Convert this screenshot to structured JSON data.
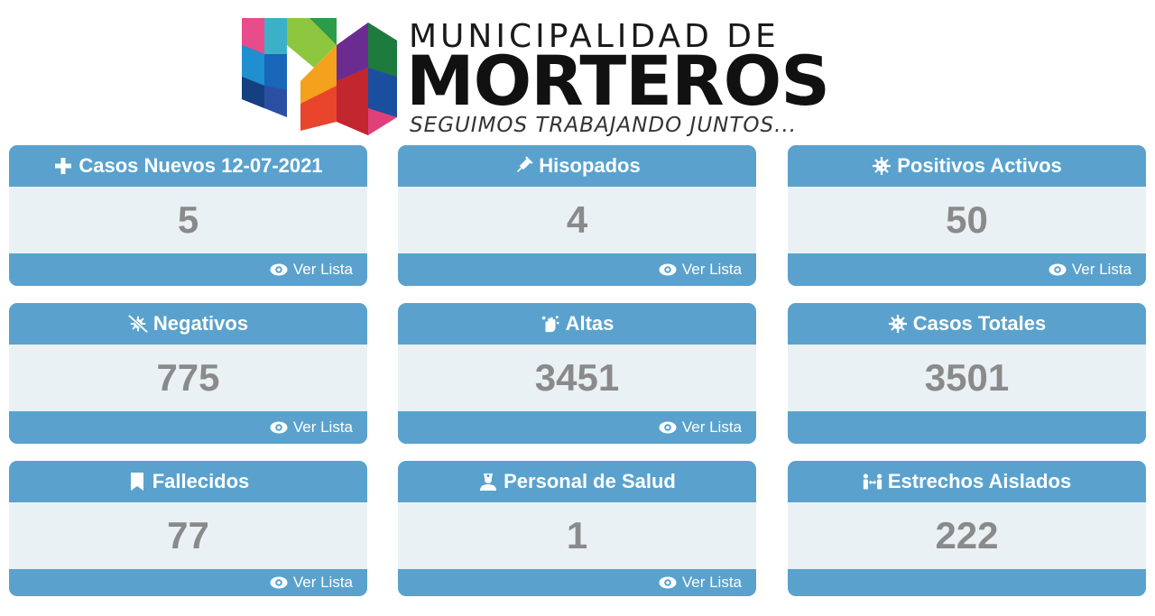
{
  "header": {
    "line1": "MUNICIPALIDAD DE",
    "line2": "MORTEROS",
    "tagline": "SEGUIMOS TRABAJANDO JUNTOS..."
  },
  "cards": [
    {
      "title": "Casos Nuevos 12-07-2021",
      "icon": "plus-icon",
      "value": "5",
      "link": "Ver Lista"
    },
    {
      "title": "Hisopados",
      "icon": "syringe-icon",
      "value": "4",
      "link": "Ver Lista"
    },
    {
      "title": "Positivos Activos",
      "icon": "virus-icon",
      "value": "50",
      "link": "Ver Lista"
    },
    {
      "title": "Negativos",
      "icon": "virus-slash-icon",
      "value": "775",
      "link": "Ver Lista"
    },
    {
      "title": "Altas",
      "icon": "hands-wash-icon",
      "value": "3451",
      "link": "Ver Lista"
    },
    {
      "title": "Casos Totales",
      "icon": "virus-icon",
      "value": "3501",
      "link": ""
    },
    {
      "title": "Fallecidos",
      "icon": "bookmark-icon",
      "value": "77",
      "link": "Ver Lista"
    },
    {
      "title": "Personal de Salud",
      "icon": "user-nurse-icon",
      "value": "1",
      "link": "Ver Lista"
    },
    {
      "title": "Estrechos Aislados",
      "icon": "people-arrows-icon",
      "value": "222",
      "link": ""
    }
  ],
  "colors": {
    "accent": "#5aa2cd",
    "panel": "#eaf1f4",
    "value": "#8a8a8a"
  }
}
